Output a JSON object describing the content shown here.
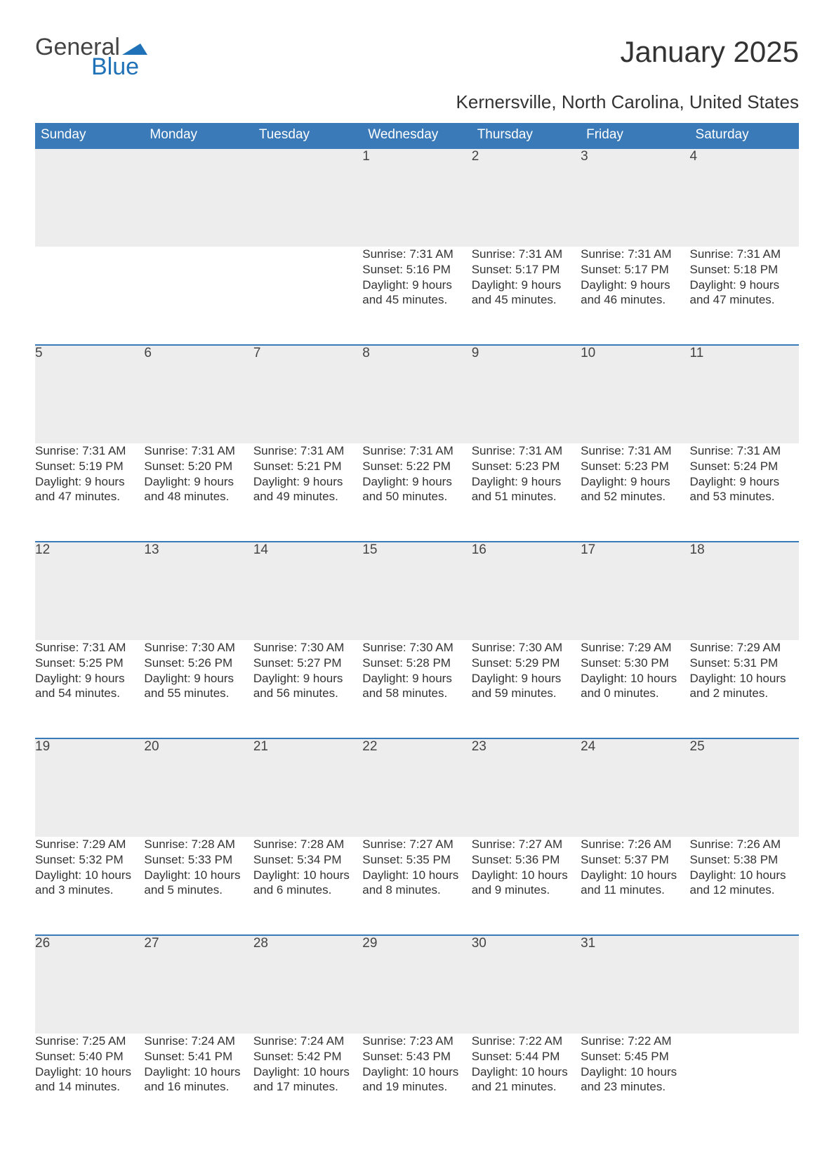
{
  "brand": {
    "part1": "General",
    "part2": "Blue",
    "accent_color": "#1f72b8"
  },
  "title": "January 2025",
  "subtitle": "Kernersville, North Carolina, United States",
  "colors": {
    "header_bg": "#3a7ab8",
    "header_text": "#ffffff",
    "daynum_bg": "#ededed",
    "row_border": "#3a7ab8",
    "body_text": "#333333",
    "page_bg": "#ffffff"
  },
  "font": {
    "family": "Arial",
    "title_size_pt": 32,
    "subtitle_size_pt": 20,
    "header_size_pt": 14,
    "body_size_pt": 13
  },
  "day_headers": [
    "Sunday",
    "Monday",
    "Tuesday",
    "Wednesday",
    "Thursday",
    "Friday",
    "Saturday"
  ],
  "weeks": [
    [
      null,
      null,
      null,
      {
        "day": "1",
        "sunrise": "Sunrise: 7:31 AM",
        "sunset": "Sunset: 5:16 PM",
        "daylight1": "Daylight: 9 hours",
        "daylight2": "and 45 minutes."
      },
      {
        "day": "2",
        "sunrise": "Sunrise: 7:31 AM",
        "sunset": "Sunset: 5:17 PM",
        "daylight1": "Daylight: 9 hours",
        "daylight2": "and 45 minutes."
      },
      {
        "day": "3",
        "sunrise": "Sunrise: 7:31 AM",
        "sunset": "Sunset: 5:17 PM",
        "daylight1": "Daylight: 9 hours",
        "daylight2": "and 46 minutes."
      },
      {
        "day": "4",
        "sunrise": "Sunrise: 7:31 AM",
        "sunset": "Sunset: 5:18 PM",
        "daylight1": "Daylight: 9 hours",
        "daylight2": "and 47 minutes."
      }
    ],
    [
      {
        "day": "5",
        "sunrise": "Sunrise: 7:31 AM",
        "sunset": "Sunset: 5:19 PM",
        "daylight1": "Daylight: 9 hours",
        "daylight2": "and 47 minutes."
      },
      {
        "day": "6",
        "sunrise": "Sunrise: 7:31 AM",
        "sunset": "Sunset: 5:20 PM",
        "daylight1": "Daylight: 9 hours",
        "daylight2": "and 48 minutes."
      },
      {
        "day": "7",
        "sunrise": "Sunrise: 7:31 AM",
        "sunset": "Sunset: 5:21 PM",
        "daylight1": "Daylight: 9 hours",
        "daylight2": "and 49 minutes."
      },
      {
        "day": "8",
        "sunrise": "Sunrise: 7:31 AM",
        "sunset": "Sunset: 5:22 PM",
        "daylight1": "Daylight: 9 hours",
        "daylight2": "and 50 minutes."
      },
      {
        "day": "9",
        "sunrise": "Sunrise: 7:31 AM",
        "sunset": "Sunset: 5:23 PM",
        "daylight1": "Daylight: 9 hours",
        "daylight2": "and 51 minutes."
      },
      {
        "day": "10",
        "sunrise": "Sunrise: 7:31 AM",
        "sunset": "Sunset: 5:23 PM",
        "daylight1": "Daylight: 9 hours",
        "daylight2": "and 52 minutes."
      },
      {
        "day": "11",
        "sunrise": "Sunrise: 7:31 AM",
        "sunset": "Sunset: 5:24 PM",
        "daylight1": "Daylight: 9 hours",
        "daylight2": "and 53 minutes."
      }
    ],
    [
      {
        "day": "12",
        "sunrise": "Sunrise: 7:31 AM",
        "sunset": "Sunset: 5:25 PM",
        "daylight1": "Daylight: 9 hours",
        "daylight2": "and 54 minutes."
      },
      {
        "day": "13",
        "sunrise": "Sunrise: 7:30 AM",
        "sunset": "Sunset: 5:26 PM",
        "daylight1": "Daylight: 9 hours",
        "daylight2": "and 55 minutes."
      },
      {
        "day": "14",
        "sunrise": "Sunrise: 7:30 AM",
        "sunset": "Sunset: 5:27 PM",
        "daylight1": "Daylight: 9 hours",
        "daylight2": "and 56 minutes."
      },
      {
        "day": "15",
        "sunrise": "Sunrise: 7:30 AM",
        "sunset": "Sunset: 5:28 PM",
        "daylight1": "Daylight: 9 hours",
        "daylight2": "and 58 minutes."
      },
      {
        "day": "16",
        "sunrise": "Sunrise: 7:30 AM",
        "sunset": "Sunset: 5:29 PM",
        "daylight1": "Daylight: 9 hours",
        "daylight2": "and 59 minutes."
      },
      {
        "day": "17",
        "sunrise": "Sunrise: 7:29 AM",
        "sunset": "Sunset: 5:30 PM",
        "daylight1": "Daylight: 10 hours",
        "daylight2": "and 0 minutes."
      },
      {
        "day": "18",
        "sunrise": "Sunrise: 7:29 AM",
        "sunset": "Sunset: 5:31 PM",
        "daylight1": "Daylight: 10 hours",
        "daylight2": "and 2 minutes."
      }
    ],
    [
      {
        "day": "19",
        "sunrise": "Sunrise: 7:29 AM",
        "sunset": "Sunset: 5:32 PM",
        "daylight1": "Daylight: 10 hours",
        "daylight2": "and 3 minutes."
      },
      {
        "day": "20",
        "sunrise": "Sunrise: 7:28 AM",
        "sunset": "Sunset: 5:33 PM",
        "daylight1": "Daylight: 10 hours",
        "daylight2": "and 5 minutes."
      },
      {
        "day": "21",
        "sunrise": "Sunrise: 7:28 AM",
        "sunset": "Sunset: 5:34 PM",
        "daylight1": "Daylight: 10 hours",
        "daylight2": "and 6 minutes."
      },
      {
        "day": "22",
        "sunrise": "Sunrise: 7:27 AM",
        "sunset": "Sunset: 5:35 PM",
        "daylight1": "Daylight: 10 hours",
        "daylight2": "and 8 minutes."
      },
      {
        "day": "23",
        "sunrise": "Sunrise: 7:27 AM",
        "sunset": "Sunset: 5:36 PM",
        "daylight1": "Daylight: 10 hours",
        "daylight2": "and 9 minutes."
      },
      {
        "day": "24",
        "sunrise": "Sunrise: 7:26 AM",
        "sunset": "Sunset: 5:37 PM",
        "daylight1": "Daylight: 10 hours",
        "daylight2": "and 11 minutes."
      },
      {
        "day": "25",
        "sunrise": "Sunrise: 7:26 AM",
        "sunset": "Sunset: 5:38 PM",
        "daylight1": "Daylight: 10 hours",
        "daylight2": "and 12 minutes."
      }
    ],
    [
      {
        "day": "26",
        "sunrise": "Sunrise: 7:25 AM",
        "sunset": "Sunset: 5:40 PM",
        "daylight1": "Daylight: 10 hours",
        "daylight2": "and 14 minutes."
      },
      {
        "day": "27",
        "sunrise": "Sunrise: 7:24 AM",
        "sunset": "Sunset: 5:41 PM",
        "daylight1": "Daylight: 10 hours",
        "daylight2": "and 16 minutes."
      },
      {
        "day": "28",
        "sunrise": "Sunrise: 7:24 AM",
        "sunset": "Sunset: 5:42 PM",
        "daylight1": "Daylight: 10 hours",
        "daylight2": "and 17 minutes."
      },
      {
        "day": "29",
        "sunrise": "Sunrise: 7:23 AM",
        "sunset": "Sunset: 5:43 PM",
        "daylight1": "Daylight: 10 hours",
        "daylight2": "and 19 minutes."
      },
      {
        "day": "30",
        "sunrise": "Sunrise: 7:22 AM",
        "sunset": "Sunset: 5:44 PM",
        "daylight1": "Daylight: 10 hours",
        "daylight2": "and 21 minutes."
      },
      {
        "day": "31",
        "sunrise": "Sunrise: 7:22 AM",
        "sunset": "Sunset: 5:45 PM",
        "daylight1": "Daylight: 10 hours",
        "daylight2": "and 23 minutes."
      },
      null
    ]
  ]
}
